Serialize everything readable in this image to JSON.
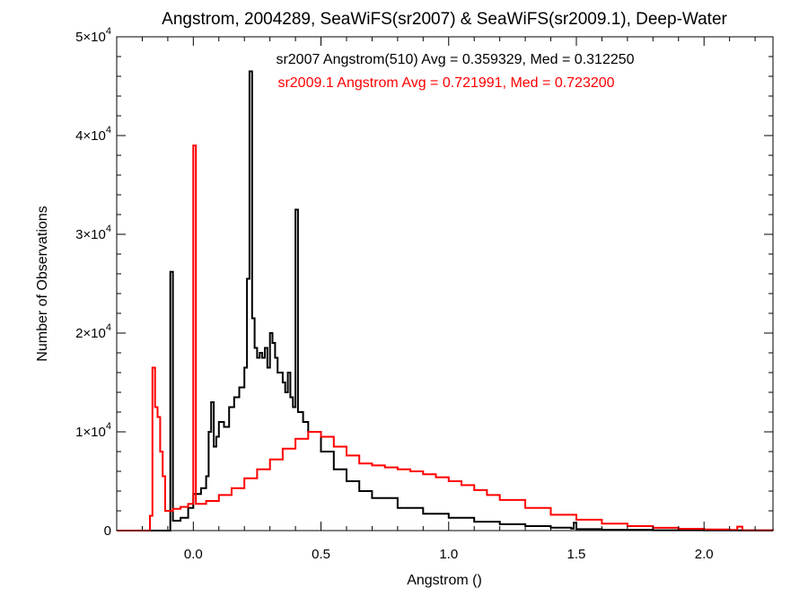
{
  "chart_data": {
    "type": "line",
    "step": true,
    "title": "Angstrom, 2004289, SeaWiFS(sr2007) & SeaWiFS(sr2009.1), Deep-Water",
    "xlabel": "Angstrom ()",
    "ylabel": "Number of Observations",
    "xlim": [
      -0.3,
      2.27
    ],
    "ylim": [
      0,
      50000
    ],
    "x_ticks": [
      0.0,
      0.5,
      1.0,
      1.5,
      2.0
    ],
    "x_tick_labels": [
      "0.0",
      "0.5",
      "1.0",
      "1.5",
      "2.0"
    ],
    "y_ticks": [
      0,
      10000,
      20000,
      30000,
      40000,
      50000
    ],
    "y_tick_labels": [
      {
        "mantissa": "0",
        "exp": ""
      },
      {
        "mantissa": "1×10",
        "exp": "4"
      },
      {
        "mantissa": "2×10",
        "exp": "4"
      },
      {
        "mantissa": "3×10",
        "exp": "4"
      },
      {
        "mantissa": "4×10",
        "exp": "4"
      },
      {
        "mantissa": "5×10",
        "exp": "4"
      }
    ],
    "grid": false,
    "annotations": [
      {
        "text": "sr2007 Angstrom(510) Avg = 0.359329, Med = 0.312250",
        "color": "#000000"
      },
      {
        "text": "sr2009.1 Angstrom Avg = 0.721991, Med = 0.723200",
        "color": "#ff0000"
      }
    ],
    "series": [
      {
        "color": "#000000",
        "points": [
          [
            -0.3,
            0
          ],
          [
            -0.1,
            0
          ],
          [
            -0.09,
            26200
          ],
          [
            -0.08,
            1000
          ],
          [
            -0.05,
            1300
          ],
          [
            -0.02,
            2300
          ],
          [
            0.0,
            3700
          ],
          [
            0.03,
            4300
          ],
          [
            0.05,
            5500
          ],
          [
            0.06,
            10000
          ],
          [
            0.07,
            13000
          ],
          [
            0.08,
            8500
          ],
          [
            0.09,
            9500
          ],
          [
            0.1,
            11000
          ],
          [
            0.12,
            10500
          ],
          [
            0.14,
            12500
          ],
          [
            0.16,
            13500
          ],
          [
            0.18,
            14500
          ],
          [
            0.2,
            16500
          ],
          [
            0.21,
            25500
          ],
          [
            0.22,
            46500
          ],
          [
            0.23,
            21500
          ],
          [
            0.24,
            18500
          ],
          [
            0.25,
            17500
          ],
          [
            0.26,
            18000
          ],
          [
            0.27,
            17500
          ],
          [
            0.28,
            18500
          ],
          [
            0.29,
            16500
          ],
          [
            0.3,
            20000
          ],
          [
            0.31,
            19000
          ],
          [
            0.32,
            17500
          ],
          [
            0.33,
            16000
          ],
          [
            0.35,
            15000
          ],
          [
            0.36,
            14000
          ],
          [
            0.37,
            16000
          ],
          [
            0.38,
            13500
          ],
          [
            0.39,
            12500
          ],
          [
            0.4,
            32500
          ],
          [
            0.41,
            12000
          ],
          [
            0.43,
            11000
          ],
          [
            0.45,
            10000
          ],
          [
            0.5,
            8000
          ],
          [
            0.55,
            6200
          ],
          [
            0.6,
            5000
          ],
          [
            0.65,
            4000
          ],
          [
            0.7,
            3300
          ],
          [
            0.8,
            2300
          ],
          [
            0.9,
            1700
          ],
          [
            1.0,
            1300
          ],
          [
            1.1,
            900
          ],
          [
            1.2,
            650
          ],
          [
            1.3,
            450
          ],
          [
            1.4,
            300
          ],
          [
            1.48,
            200
          ],
          [
            1.49,
            800
          ],
          [
            1.5,
            150
          ],
          [
            1.6,
            80
          ],
          [
            1.8,
            40
          ],
          [
            2.0,
            20
          ],
          [
            2.27,
            0
          ]
        ]
      },
      {
        "color": "#ff0000",
        "points": [
          [
            -0.3,
            0
          ],
          [
            -0.18,
            0
          ],
          [
            -0.17,
            1500
          ],
          [
            -0.16,
            16500
          ],
          [
            -0.15,
            12500
          ],
          [
            -0.14,
            11500
          ],
          [
            -0.13,
            8000
          ],
          [
            -0.12,
            5500
          ],
          [
            -0.11,
            2000
          ],
          [
            -0.08,
            2200
          ],
          [
            -0.05,
            2400
          ],
          [
            -0.02,
            2700
          ],
          [
            0.0,
            39000
          ],
          [
            0.01,
            2700
          ],
          [
            0.05,
            3000
          ],
          [
            0.1,
            3600
          ],
          [
            0.15,
            4300
          ],
          [
            0.2,
            5300
          ],
          [
            0.25,
            6200
          ],
          [
            0.3,
            7200
          ],
          [
            0.35,
            8300
          ],
          [
            0.4,
            9300
          ],
          [
            0.45,
            10000
          ],
          [
            0.5,
            9500
          ],
          [
            0.55,
            8500
          ],
          [
            0.6,
            7600
          ],
          [
            0.65,
            6800
          ],
          [
            0.7,
            6600
          ],
          [
            0.75,
            6400
          ],
          [
            0.8,
            6200
          ],
          [
            0.85,
            6000
          ],
          [
            0.9,
            5700
          ],
          [
            0.95,
            5400
          ],
          [
            1.0,
            5000
          ],
          [
            1.05,
            4600
          ],
          [
            1.1,
            4100
          ],
          [
            1.15,
            3600
          ],
          [
            1.2,
            3100
          ],
          [
            1.3,
            2300
          ],
          [
            1.4,
            1600
          ],
          [
            1.5,
            1100
          ],
          [
            1.6,
            700
          ],
          [
            1.7,
            450
          ],
          [
            1.8,
            280
          ],
          [
            1.9,
            180
          ],
          [
            2.0,
            110
          ],
          [
            2.1,
            60
          ],
          [
            2.13,
            400
          ],
          [
            2.15,
            30
          ],
          [
            2.27,
            0
          ]
        ]
      }
    ]
  }
}
